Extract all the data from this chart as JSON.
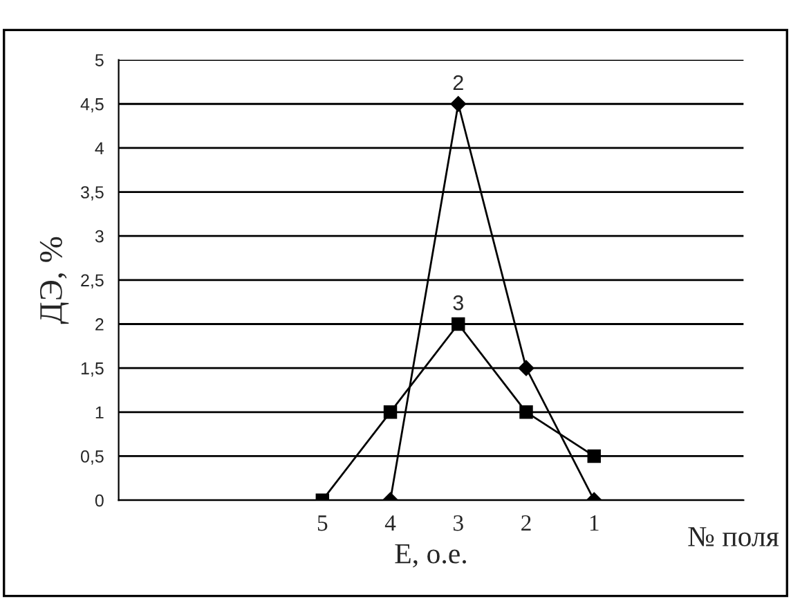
{
  "chart_data": {
    "type": "line",
    "xlabel": "E, о.е.",
    "ylabel": "ДЭ, %",
    "annotations": [
      "№ поля"
    ],
    "categories": [
      null,
      null,
      null,
      "5",
      "4",
      "3",
      "2",
      "1",
      null,
      null
    ],
    "series": [
      {
        "name": "2",
        "color": "#000000",
        "marker": "diamond",
        "values": [
          null,
          null,
          null,
          null,
          0,
          4.5,
          1.5,
          0,
          null,
          null
        ]
      },
      {
        "name": "3",
        "color": "#000000",
        "marker": "square",
        "values": [
          null,
          null,
          null,
          0,
          1,
          2,
          1,
          0.5,
          null,
          null
        ]
      }
    ],
    "ylim": [
      0,
      5
    ],
    "yticks": [
      0,
      {
        "value": 0.5,
        "label": "0,5"
      },
      1,
      {
        "value": 1.5,
        "label": "1,5"
      },
      2,
      {
        "value": 2.5,
        "label": "2,5"
      },
      3,
      {
        "value": 3.5,
        "label": "3,5"
      },
      4,
      {
        "value": 4.5,
        "label": "4,5"
      },
      5
    ],
    "grid": "y",
    "legend": false
  }
}
